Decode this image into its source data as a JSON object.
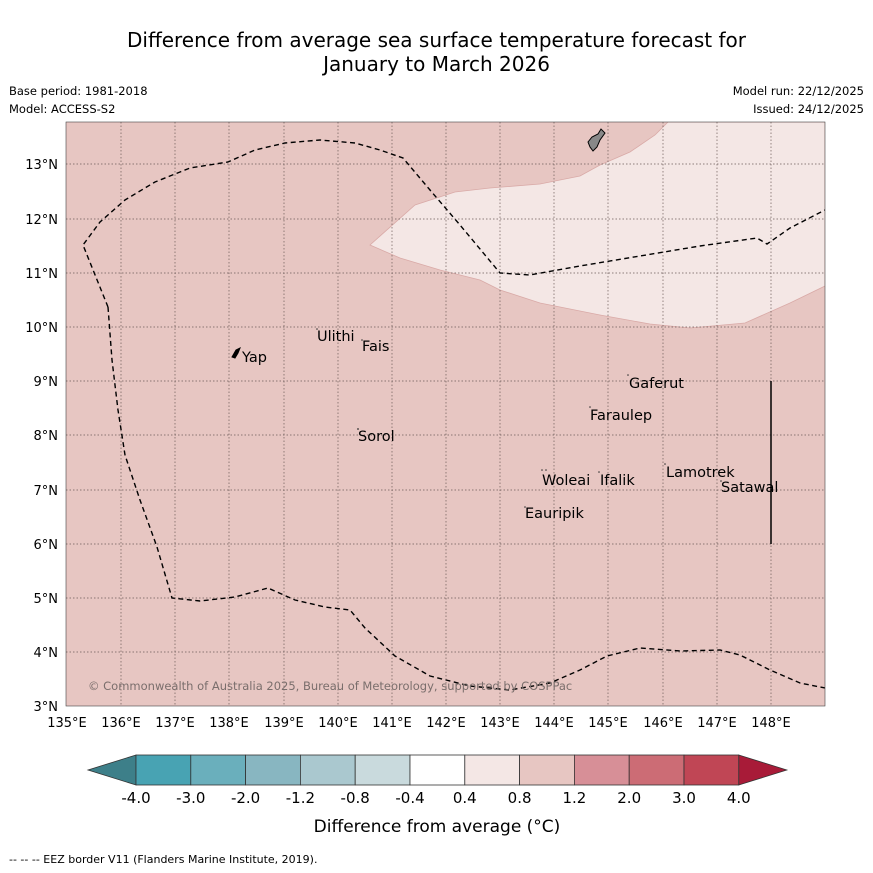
{
  "title": {
    "line1": "Difference from average sea surface temperature forecast for",
    "line2": "January to March 2026"
  },
  "meta": {
    "base_period": "Base period: 1981-2018",
    "model": "Model: ACCESS-S2",
    "model_run": "Model run: 22/12/2025",
    "issued": "Issued: 24/12/2025"
  },
  "map": {
    "lat_labels": [
      "3°N",
      "4°N",
      "5°N",
      "6°N",
      "7°N",
      "8°N",
      "9°N",
      "10°N",
      "11°N",
      "12°N",
      "13°N"
    ],
    "lon_labels": [
      "135°E",
      "136°E",
      "137°E",
      "138°E",
      "139°E",
      "140°E",
      "141°E",
      "142°E",
      "143°E",
      "144°E",
      "145°E",
      "146°E",
      "147°E",
      "148°E"
    ],
    "places": [
      "Yap",
      "Ulithi",
      "Fais",
      "Sorol",
      "Gaferut",
      "Faraulep",
      "Woleai",
      "Ifalik",
      "Lamotrek",
      "Satawal",
      "Eauripik"
    ],
    "copyright": "© Commonwealth of Australia 2025, Bureau of Meteorology, supported by COSPPac",
    "region_colors": {
      "anomaly_0_8_to_1_2": "#e7c6c2",
      "anomaly_0_4_to_0_8": "#f4e7e5",
      "land": "#888888"
    }
  },
  "colorbar": {
    "ticks": [
      "-4.0",
      "-3.0",
      "-2.0",
      "-1.2",
      "-0.8",
      "-0.4",
      "0.4",
      "0.8",
      "1.2",
      "2.0",
      "3.0",
      "4.0"
    ],
    "colors": [
      "#3d7f89",
      "#48a3b3",
      "#6aafbc",
      "#88b6c1",
      "#aac8cf",
      "#c9dadd",
      "#ffffff",
      "#f4e7e5",
      "#e7c6c2",
      "#d78f97",
      "#cc6c75",
      "#c04655",
      "#a81b38"
    ],
    "label": "Difference from average (°C)"
  },
  "footer": "-- -- -- EEZ border V11 (Flanders Marine Institute, 2019)."
}
